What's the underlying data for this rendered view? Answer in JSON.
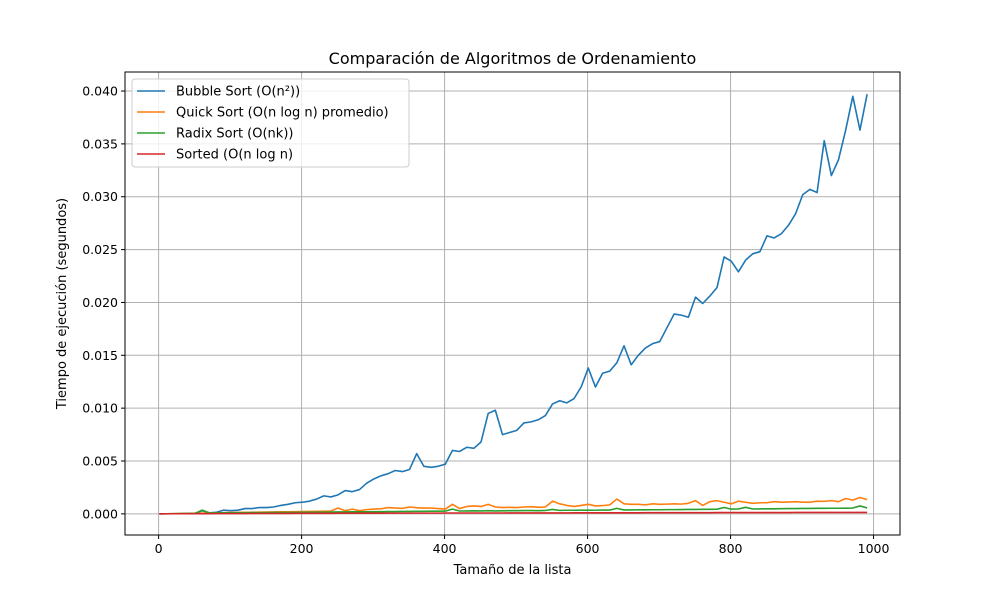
{
  "chart_data": {
    "type": "line",
    "title": "Comparación de Algoritmos de Ordenamiento",
    "xlabel": "Tamaño de la lista",
    "ylabel": "Tiempo de ejecución (segundos)",
    "xlim": [
      -47,
      1037
    ],
    "ylim": [
      -0.002,
      0.0418
    ],
    "x_ticks": [
      0,
      200,
      400,
      600,
      800,
      1000
    ],
    "x_tick_labels": [
      "0",
      "200",
      "400",
      "600",
      "800",
      "1000"
    ],
    "y_ticks": [
      0.0,
      0.005,
      0.01,
      0.015,
      0.02,
      0.025,
      0.03,
      0.035,
      0.04
    ],
    "y_tick_labels": [
      "0.000",
      "0.005",
      "0.010",
      "0.015",
      "0.020",
      "0.025",
      "0.030",
      "0.035",
      "0.040"
    ],
    "grid": true,
    "legend_position": "top-left",
    "x": [
      1,
      11,
      21,
      31,
      41,
      51,
      61,
      71,
      81,
      91,
      101,
      111,
      121,
      131,
      141,
      151,
      161,
      171,
      181,
      191,
      201,
      211,
      221,
      231,
      241,
      251,
      261,
      271,
      281,
      291,
      301,
      311,
      321,
      331,
      341,
      351,
      361,
      371,
      381,
      391,
      401,
      411,
      421,
      431,
      441,
      451,
      461,
      471,
      481,
      491,
      501,
      511,
      521,
      531,
      541,
      551,
      561,
      571,
      581,
      591,
      601,
      611,
      621,
      631,
      641,
      651,
      661,
      671,
      681,
      691,
      701,
      711,
      721,
      731,
      741,
      751,
      761,
      771,
      781,
      791,
      801,
      811,
      821,
      831,
      841,
      851,
      861,
      871,
      881,
      891,
      901,
      911,
      921,
      931,
      941,
      951,
      961,
      971,
      981,
      991
    ],
    "series": [
      {
        "name": "Bubble Sort (O(n²))",
        "color": "#1f77b4",
        "values": [
          0,
          0,
          1e-05,
          2e-05,
          3e-05,
          5e-05,
          0.0003,
          0.0001,
          0.00015,
          0.00035,
          0.0003,
          0.00035,
          0.0005,
          0.0005,
          0.0006,
          0.0006,
          0.00065,
          0.0008,
          0.0009,
          0.00105,
          0.0011,
          0.0012,
          0.0014,
          0.0017,
          0.0016,
          0.0018,
          0.0022,
          0.0021,
          0.0023,
          0.0029,
          0.0033,
          0.0036,
          0.0038,
          0.0041,
          0.004,
          0.0042,
          0.0057,
          0.0045,
          0.0044,
          0.0045,
          0.0047,
          0.006,
          0.0059,
          0.0063,
          0.0062,
          0.0068,
          0.0095,
          0.0098,
          0.0075,
          0.0077,
          0.0079,
          0.0086,
          0.0087,
          0.0089,
          0.0093,
          0.0104,
          0.0107,
          0.0105,
          0.0109,
          0.012,
          0.0138,
          0.012,
          0.0133,
          0.0135,
          0.0143,
          0.0159,
          0.0141,
          0.015,
          0.0157,
          0.0161,
          0.0163,
          0.0176,
          0.0189,
          0.0188,
          0.0186,
          0.0205,
          0.0199,
          0.0206,
          0.0214,
          0.0243,
          0.0239,
          0.0229,
          0.024,
          0.0246,
          0.0248,
          0.0263,
          0.0261,
          0.0265,
          0.0273,
          0.0284,
          0.0302,
          0.0307,
          0.0304,
          0.0353,
          0.032,
          0.0335,
          0.0363,
          0.0395,
          0.0363,
          0.0397
        ]
      },
      {
        "name": "Quick Sort (O(n log n) promedio)",
        "color": "#ff7f0e",
        "values": [
          0,
          1e-05,
          2e-05,
          3e-05,
          4e-05,
          5e-05,
          6e-05,
          8e-05,
          0.0001,
          0.00011,
          0.00012,
          0.00013,
          0.00014,
          0.00015,
          0.00016,
          0.00017,
          0.00018,
          0.00019,
          0.0002,
          0.00021,
          0.00022,
          0.00023,
          0.00024,
          0.00025,
          0.00027,
          0.00055,
          0.0003,
          0.00045,
          0.0003,
          0.0004,
          0.00045,
          0.00048,
          0.0006,
          0.00055,
          0.00052,
          0.00065,
          0.00058,
          0.00055,
          0.00055,
          0.0005,
          0.00045,
          0.0009,
          0.0005,
          0.0007,
          0.00075,
          0.0007,
          0.0009,
          0.00065,
          0.0006,
          0.00062,
          0.0006,
          0.00065,
          0.00068,
          0.00062,
          0.00065,
          0.0012,
          0.00095,
          0.0008,
          0.0007,
          0.0008,
          0.0009,
          0.00075,
          0.00078,
          0.00085,
          0.0014,
          0.00095,
          0.0009,
          0.0009,
          0.00085,
          0.00095,
          0.0009,
          0.00092,
          0.00095,
          0.00092,
          0.001,
          0.00125,
          0.0008,
          0.00115,
          0.00125,
          0.0011,
          0.00095,
          0.0012,
          0.0011,
          0.001,
          0.00105,
          0.00105,
          0.00115,
          0.0011,
          0.00112,
          0.00115,
          0.0011,
          0.0011,
          0.0012,
          0.00118,
          0.00125,
          0.00115,
          0.00145,
          0.0013,
          0.00155,
          0.00135
        ]
      },
      {
        "name": "Radix Sort (O(nk))",
        "color": "#2ca02c",
        "values": [
          0,
          1e-05,
          2e-05,
          3e-05,
          4e-05,
          5e-05,
          0.00035,
          8e-05,
          0.0001,
          0.0001,
          0.0001,
          0.00011,
          0.00011,
          0.00012,
          0.00012,
          0.00012,
          0.00013,
          0.00013,
          0.00013,
          0.00014,
          0.00015,
          0.00015,
          0.00016,
          0.00016,
          0.00017,
          0.00018,
          0.00018,
          0.00019,
          0.00019,
          0.0002,
          0.00021,
          0.00021,
          0.00022,
          0.00022,
          0.00023,
          0.00023,
          0.00024,
          0.00024,
          0.00025,
          0.00025,
          0.00026,
          0.00045,
          0.00027,
          0.00028,
          0.00029,
          0.00028,
          0.0003,
          0.00028,
          0.00029,
          0.0003,
          0.0003,
          0.00031,
          0.00031,
          0.0003,
          0.00032,
          0.00042,
          0.00033,
          0.00034,
          0.00034,
          0.00035,
          0.00035,
          0.00034,
          0.00036,
          0.00036,
          0.00052,
          0.00037,
          0.00037,
          0.00038,
          0.00038,
          0.00039,
          0.00039,
          0.0004,
          0.0004,
          0.00041,
          0.00042,
          0.00042,
          0.00043,
          0.00043,
          0.00044,
          0.0006,
          0.00045,
          0.00046,
          0.00062,
          0.00046,
          0.00047,
          0.00048,
          0.00048,
          0.00049,
          0.0005,
          0.0005,
          0.00051,
          0.00051,
          0.00052,
          0.00052,
          0.00053,
          0.00053,
          0.00054,
          0.00055,
          0.00075,
          0.00056
        ]
      },
      {
        "name": "Sorted (O(n log n)",
        "color": "#d62728",
        "values": [
          0,
          1e-05,
          1e-05,
          1e-05,
          2e-05,
          2e-05,
          2e-05,
          2e-05,
          3e-05,
          3e-05,
          3e-05,
          3e-05,
          3e-05,
          4e-05,
          4e-05,
          4e-05,
          4e-05,
          4e-05,
          4e-05,
          5e-05,
          5e-05,
          5e-05,
          5e-05,
          5e-05,
          5e-05,
          6e-05,
          6e-05,
          6e-05,
          6e-05,
          6e-05,
          6e-05,
          6e-05,
          7e-05,
          7e-05,
          7e-05,
          7e-05,
          7e-05,
          7e-05,
          7e-05,
          7e-05,
          8e-05,
          8e-05,
          8e-05,
          8e-05,
          8e-05,
          8e-05,
          8e-05,
          8e-05,
          8e-05,
          9e-05,
          9e-05,
          9e-05,
          9e-05,
          9e-05,
          9e-05,
          9e-05,
          9e-05,
          9e-05,
          0.0001,
          0.0001,
          0.0001,
          0.0001,
          0.0001,
          0.0001,
          0.0001,
          0.0001,
          0.0001,
          0.0001,
          0.00011,
          0.00011,
          0.00011,
          0.00011,
          0.00011,
          0.00011,
          0.00011,
          0.00011,
          0.00011,
          0.00011,
          0.00012,
          0.00012,
          0.00012,
          0.00012,
          0.00012,
          0.00012,
          0.00012,
          0.00012,
          0.00012,
          0.00012,
          0.00012,
          0.00013,
          0.00013,
          0.00013,
          0.00013,
          0.00013,
          0.00013,
          0.00013,
          0.00013,
          0.00013,
          0.00013,
          0.00013
        ]
      }
    ]
  }
}
